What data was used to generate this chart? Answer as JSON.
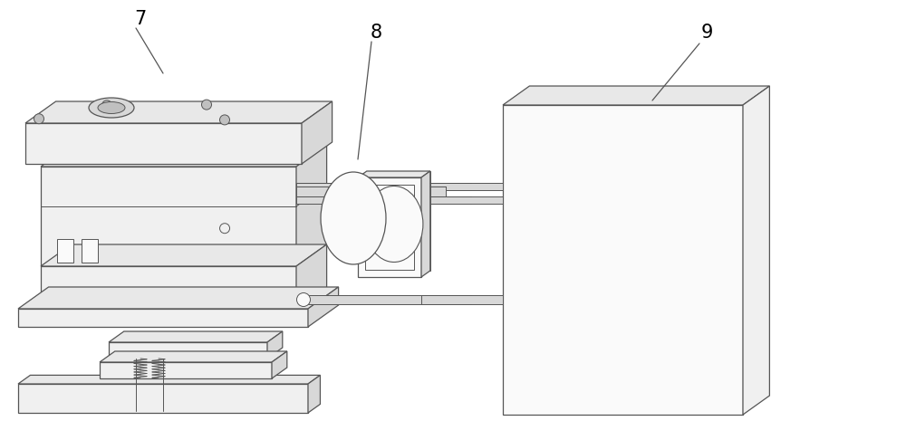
{
  "background_color": "#ffffff",
  "line_color": "#555555",
  "fill_light": "#f0f0f0",
  "fill_mid": "#d8d8d8",
  "fill_dark": "#c0c0c0",
  "fill_top": "#e8e8e8",
  "fill_white": "#fafafa",
  "label_7": "7",
  "label_8": "8",
  "label_9": "9",
  "figsize": [
    10.0,
    4.86
  ],
  "dpi": 100
}
